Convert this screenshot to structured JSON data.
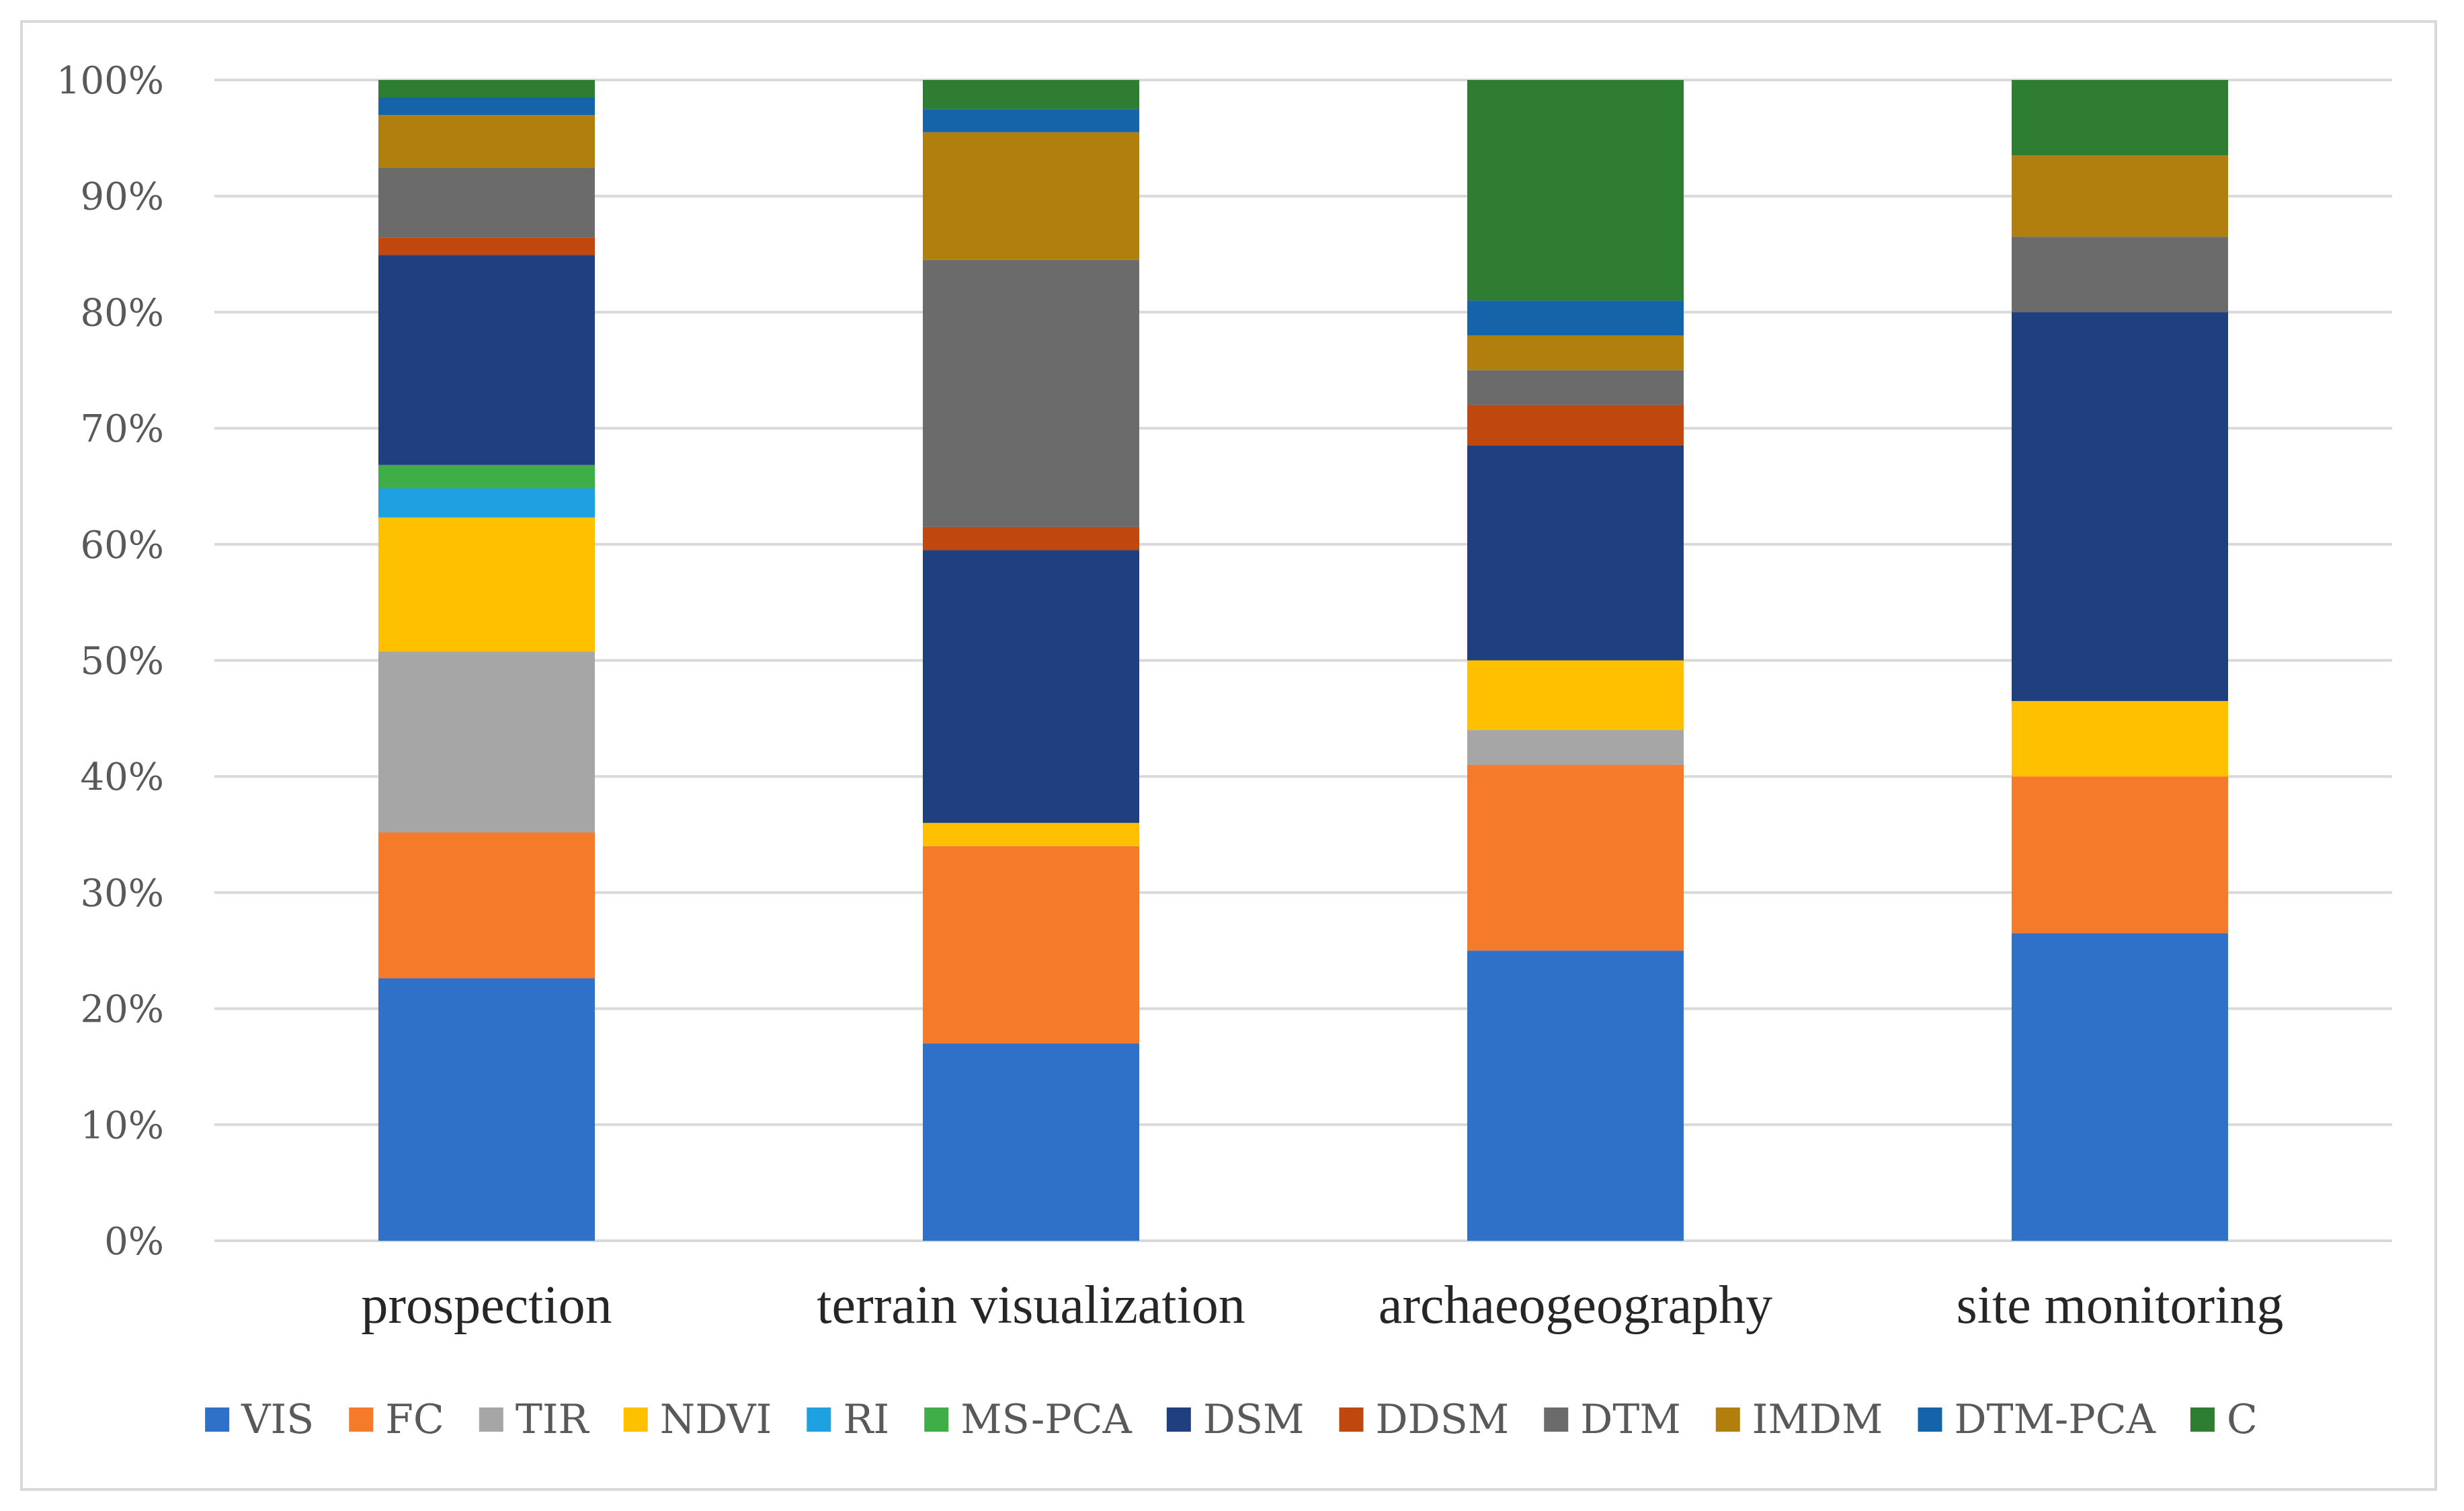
{
  "chart_data": {
    "type": "bar",
    "stacked": true,
    "percent": true,
    "title": "",
    "xlabel": "",
    "ylabel": "",
    "ylim": [
      0,
      100
    ],
    "yticks": [
      "0%",
      "10%",
      "20%",
      "30%",
      "40%",
      "50%",
      "60%",
      "70%",
      "80%",
      "90%",
      "100%"
    ],
    "grid": true,
    "legend_position": "bottom",
    "categories": [
      "prospection",
      "terrain visualization",
      "archaeogeography",
      "site monitoring"
    ],
    "series": [
      {
        "name": "VIS",
        "color": "#2f70c9",
        "values": [
          22.5,
          17.0,
          25.0,
          26.5
        ]
      },
      {
        "name": "FC",
        "color": "#f57a2a",
        "values": [
          12.5,
          17.0,
          16.0,
          13.5
        ]
      },
      {
        "name": "TIR",
        "color": "#a6a6a6",
        "values": [
          15.5,
          0.0,
          3.0,
          0.0
        ]
      },
      {
        "name": "NDVI",
        "color": "#ffc000",
        "values": [
          11.5,
          2.0,
          6.0,
          6.5
        ]
      },
      {
        "name": "RI",
        "color": "#1fa0e0",
        "values": [
          2.5,
          0.0,
          0.0,
          0.0
        ]
      },
      {
        "name": "MS-PCA",
        "color": "#3fae49",
        "values": [
          2.0,
          0.0,
          0.0,
          0.0
        ]
      },
      {
        "name": "DSM",
        "color": "#1f3f7f",
        "values": [
          18.0,
          23.5,
          18.5,
          33.5
        ]
      },
      {
        "name": "DDSM",
        "color": "#c0480f",
        "values": [
          1.5,
          2.0,
          3.5,
          0.0
        ]
      },
      {
        "name": "DTM",
        "color": "#6b6b6b",
        "values": [
          6.0,
          23.0,
          3.0,
          6.5
        ]
      },
      {
        "name": "IMDM",
        "color": "#b07f0e",
        "values": [
          4.5,
          11.0,
          3.0,
          7.0
        ]
      },
      {
        "name": "DTM-PCA",
        "color": "#1563a8",
        "values": [
          1.5,
          2.0,
          3.0,
          0.0
        ]
      },
      {
        "name": "C",
        "color": "#2e7d32",
        "values": [
          1.5,
          2.5,
          19.0,
          6.5
        ]
      }
    ]
  }
}
